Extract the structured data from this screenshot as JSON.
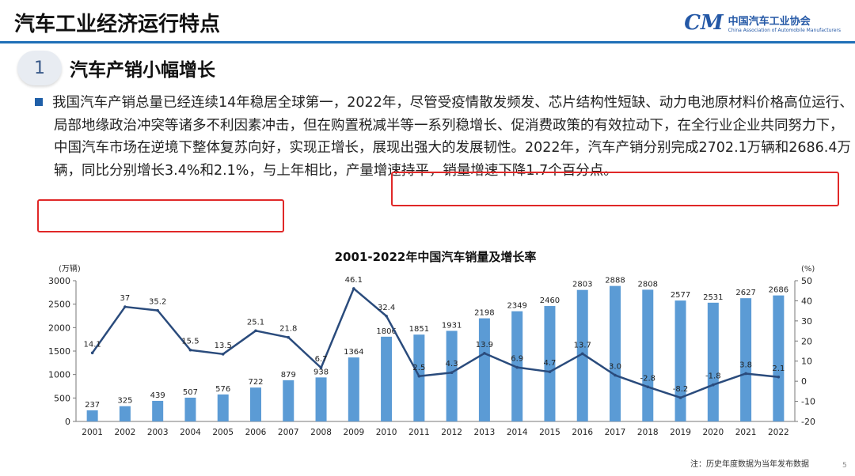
{
  "header": {
    "title": "汽车工业经济运行特点",
    "logo_mark": "CM",
    "logo_cn": "中国汽车工业协会",
    "logo_en": "China Association of Automobile Manufacturers"
  },
  "section": {
    "number": "1",
    "title": "汽车产销小幅增长"
  },
  "paragraph": {
    "part1": "我国汽车产销总量已经连续14年稳居全球第一，2022年，尽管受疫情散发频发、芯片结构性短缺、动力电池原材料价格高位运行、局部地缘政治冲突等诸多不利因素冲击，但在购置税减半等一系列稳增长、促消费政策的有效拉动下，在全行业企业共同努力下，中国汽车市场在逆境下整体复苏向好，实现正增长，展现出强大的发展韧性。",
    "highlight": "2022年，汽车产销分别完成2702.1万辆和2686.4万辆，同比分别增长3.4%和2.1%",
    "part2": "，与上年相比，产量增速持平，销量增速下降1.7个百分点。"
  },
  "colors": {
    "bar": "#5b9bd5",
    "line": "#2a4b7c",
    "highlight": "#e02828",
    "accent": "#1f6fb7"
  },
  "chart_data": {
    "type": "bar",
    "title": "2001-2022年中国汽车销量及增长率",
    "categories": [
      "2001",
      "2002",
      "2003",
      "2004",
      "2005",
      "2006",
      "2007",
      "2008",
      "2009",
      "2010",
      "2011",
      "2012",
      "2013",
      "2014",
      "2015",
      "2016",
      "2017",
      "2018",
      "2019",
      "2020",
      "2021",
      "2022"
    ],
    "series": [
      {
        "name": "销量",
        "type": "bar",
        "axis": "left",
        "values": [
          237,
          325,
          439,
          507,
          576,
          722,
          879,
          938,
          1364,
          1806,
          1851,
          1931,
          2198,
          2349,
          2460,
          2803,
          2888,
          2808,
          2577,
          2531,
          2627,
          2686
        ]
      },
      {
        "name": "增长率",
        "type": "line",
        "axis": "right",
        "values": [
          14.1,
          37,
          35.2,
          15.5,
          13.5,
          25.1,
          21.8,
          6.7,
          46.1,
          32.4,
          2.5,
          4.3,
          13.9,
          6.9,
          4.7,
          13.7,
          3.0,
          -2.8,
          -8.2,
          -1.8,
          3.8,
          2.1
        ],
        "labels": [
          "14.1",
          "37",
          "35.2",
          "15.5",
          "13.5",
          "25.1",
          "21.8",
          "6.7",
          "46.1",
          "32.4",
          "2.5",
          "4.3",
          "13.9",
          "6.9",
          "4.7",
          "13.7",
          "3.0",
          "-2.8",
          "-8.2",
          "-1.8",
          "3.8",
          "2.1"
        ]
      }
    ],
    "y_left": {
      "label": "(万辆)",
      "min": 0,
      "max": 3000,
      "ticks": [
        "0",
        "500",
        "1000",
        "1500",
        "2000",
        "2500",
        "3000"
      ]
    },
    "y_right": {
      "label": "(%)",
      "min": -20,
      "max": 50,
      "ticks": [
        "-20",
        "-10",
        "0",
        "10",
        "20",
        "30",
        "40",
        "50"
      ]
    },
    "grid": false
  },
  "footer": {
    "source": "注：历史年度数据为当年发布数据",
    "page": "5"
  }
}
